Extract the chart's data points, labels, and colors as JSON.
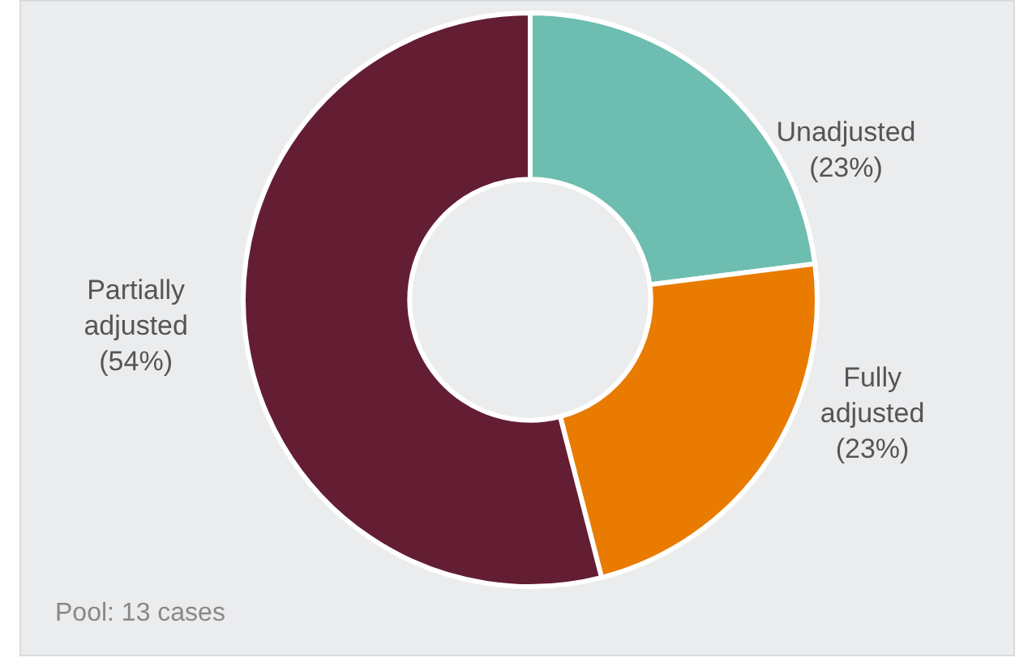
{
  "chart_data": {
    "type": "donut",
    "categories": [
      "Unadjusted",
      "Fully adjusted",
      "Partially adjusted"
    ],
    "values": [
      23,
      23,
      54
    ],
    "colors": [
      "#6dbdb0",
      "#e87b00",
      "#631e33"
    ],
    "value_labels": [
      "(23%)",
      "(23%)",
      "(54%)"
    ],
    "annotations": [
      "Pool: 13 cases"
    ],
    "legend": false
  }
}
